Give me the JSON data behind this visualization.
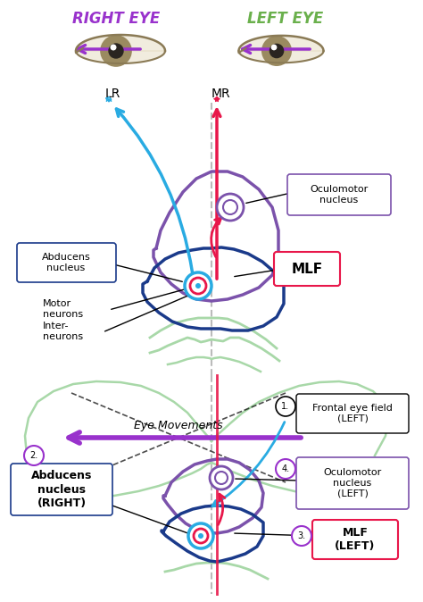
{
  "right_eye_label": "RIGHT EYE",
  "left_eye_label": "LEFT EYE",
  "right_eye_color": "#9932CC",
  "left_eye_color": "#6ab04c",
  "lr_label": "LR",
  "mr_label": "MR",
  "oculomotor_label": "Oculomotor\nnucleus",
  "abducens_label": "Abducens\nnucleus",
  "motor_neurons_label": "Motor\nneurons",
  "inter_neurons_label": "Inter-\nneurons",
  "mlf_label": "MLF",
  "eye_movements_label": "Eye Movements",
  "frontal_eye_label": "Frontal eye field\n(LEFT)",
  "abducens_right_label": "Abducens\nnucleus\n(RIGHT)",
  "oculomotor_left_label": "Oculomotor\nnucleus\n(LEFT)",
  "mlf_left_label": "MLF\n(LEFT)",
  "bg_color": "#ffffff",
  "purple_color": "#9932CC",
  "blue_color": "#1a3a8a",
  "cyan_color": "#29abe2",
  "pink_color": "#e8174a",
  "green_light": "#a8d8a8",
  "brain_outline_color": "#7b52ab",
  "brainstem_color": "#1a3a8a",
  "label_purple_border": "#9932CC",
  "label_pink_border": "#e8174a",
  "label_blue_border": "#1a3a8a"
}
